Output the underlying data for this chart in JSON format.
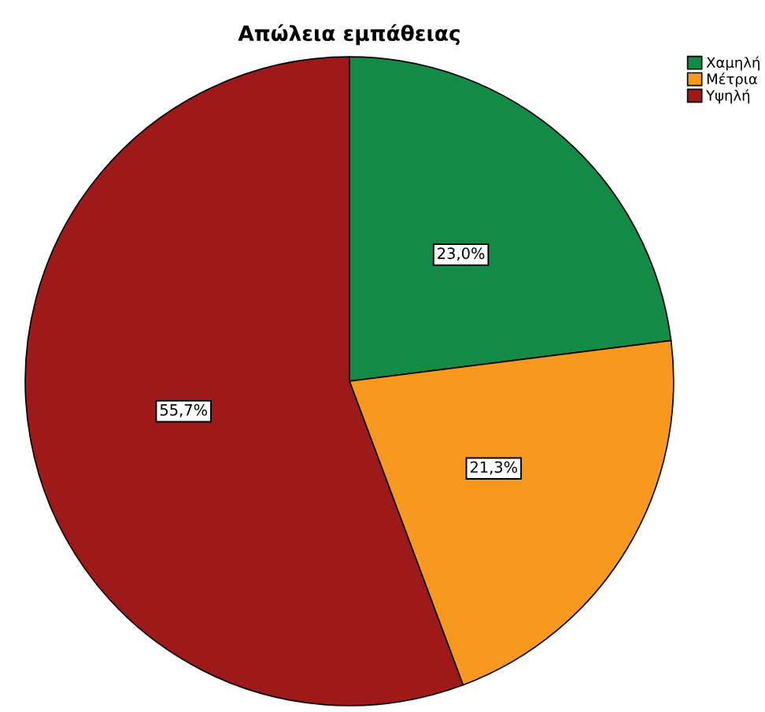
{
  "chart_data": {
    "type": "pie",
    "title": "Απώλεια εμπάθειας",
    "categories": [
      "Χαμηλή",
      "Μέτρια",
      "Υψηλή"
    ],
    "values": [
      23.0,
      21.3,
      55.7
    ],
    "colors": [
      "#138a46",
      "#f7991e",
      "#9e1a1a"
    ],
    "value_labels": [
      "23,0%",
      "21,3%",
      "55,7%"
    ],
    "legend": "top right"
  }
}
